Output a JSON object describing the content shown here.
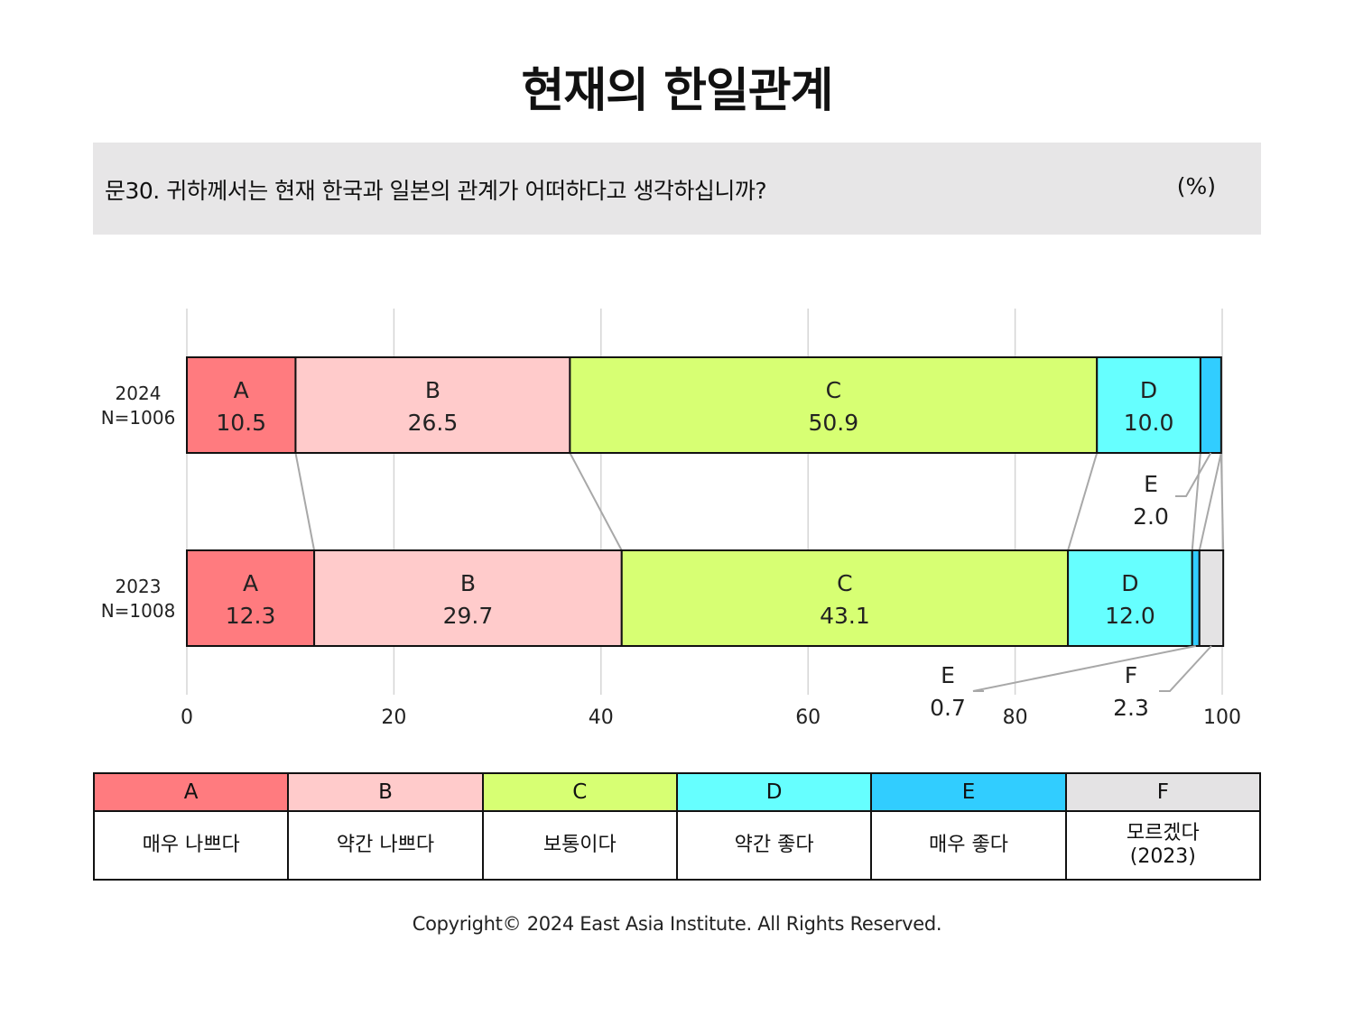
{
  "title": "현재의 한일관계",
  "question": "문30. 귀하께서는 현재 한국과 일본의 관계가 어떠하다고 생각하십니까?",
  "unit": "(%)",
  "copyright": "Copyright© 2024 East Asia Institute. All Rights Reserved.",
  "colors": {
    "A": "#ff7b7f",
    "B": "#ffcbcb",
    "C": "#d7ff73",
    "D": "#66ffff",
    "E": "#31cdff",
    "F": "#e4e3e4"
  },
  "legend": [
    {
      "key": "A",
      "label": "매우 나쁘다"
    },
    {
      "key": "B",
      "label": "약간 나쁘다"
    },
    {
      "key": "C",
      "label": "보통이다"
    },
    {
      "key": "D",
      "label": "약간 좋다"
    },
    {
      "key": "E",
      "label": "매우 좋다"
    },
    {
      "key": "F",
      "label": "모르겠다\n(2023)"
    }
  ],
  "chart_data": {
    "type": "bar",
    "orientation": "horizontal",
    "stacked": true,
    "xlim": [
      0,
      100
    ],
    "xticks": [
      0,
      20,
      40,
      60,
      80,
      100
    ],
    "grid": true,
    "categories": [
      "2024\nN=1006",
      "2023\nN=1008"
    ],
    "series": [
      {
        "name": "A",
        "values": [
          10.5,
          12.3
        ]
      },
      {
        "name": "B",
        "values": [
          26.5,
          29.7
        ]
      },
      {
        "name": "C",
        "values": [
          50.9,
          43.1
        ]
      },
      {
        "name": "D",
        "values": [
          10.0,
          12.0
        ]
      },
      {
        "name": "E",
        "values": [
          2.0,
          0.7
        ]
      },
      {
        "name": "F",
        "values": [
          0,
          2.3
        ]
      }
    ]
  }
}
